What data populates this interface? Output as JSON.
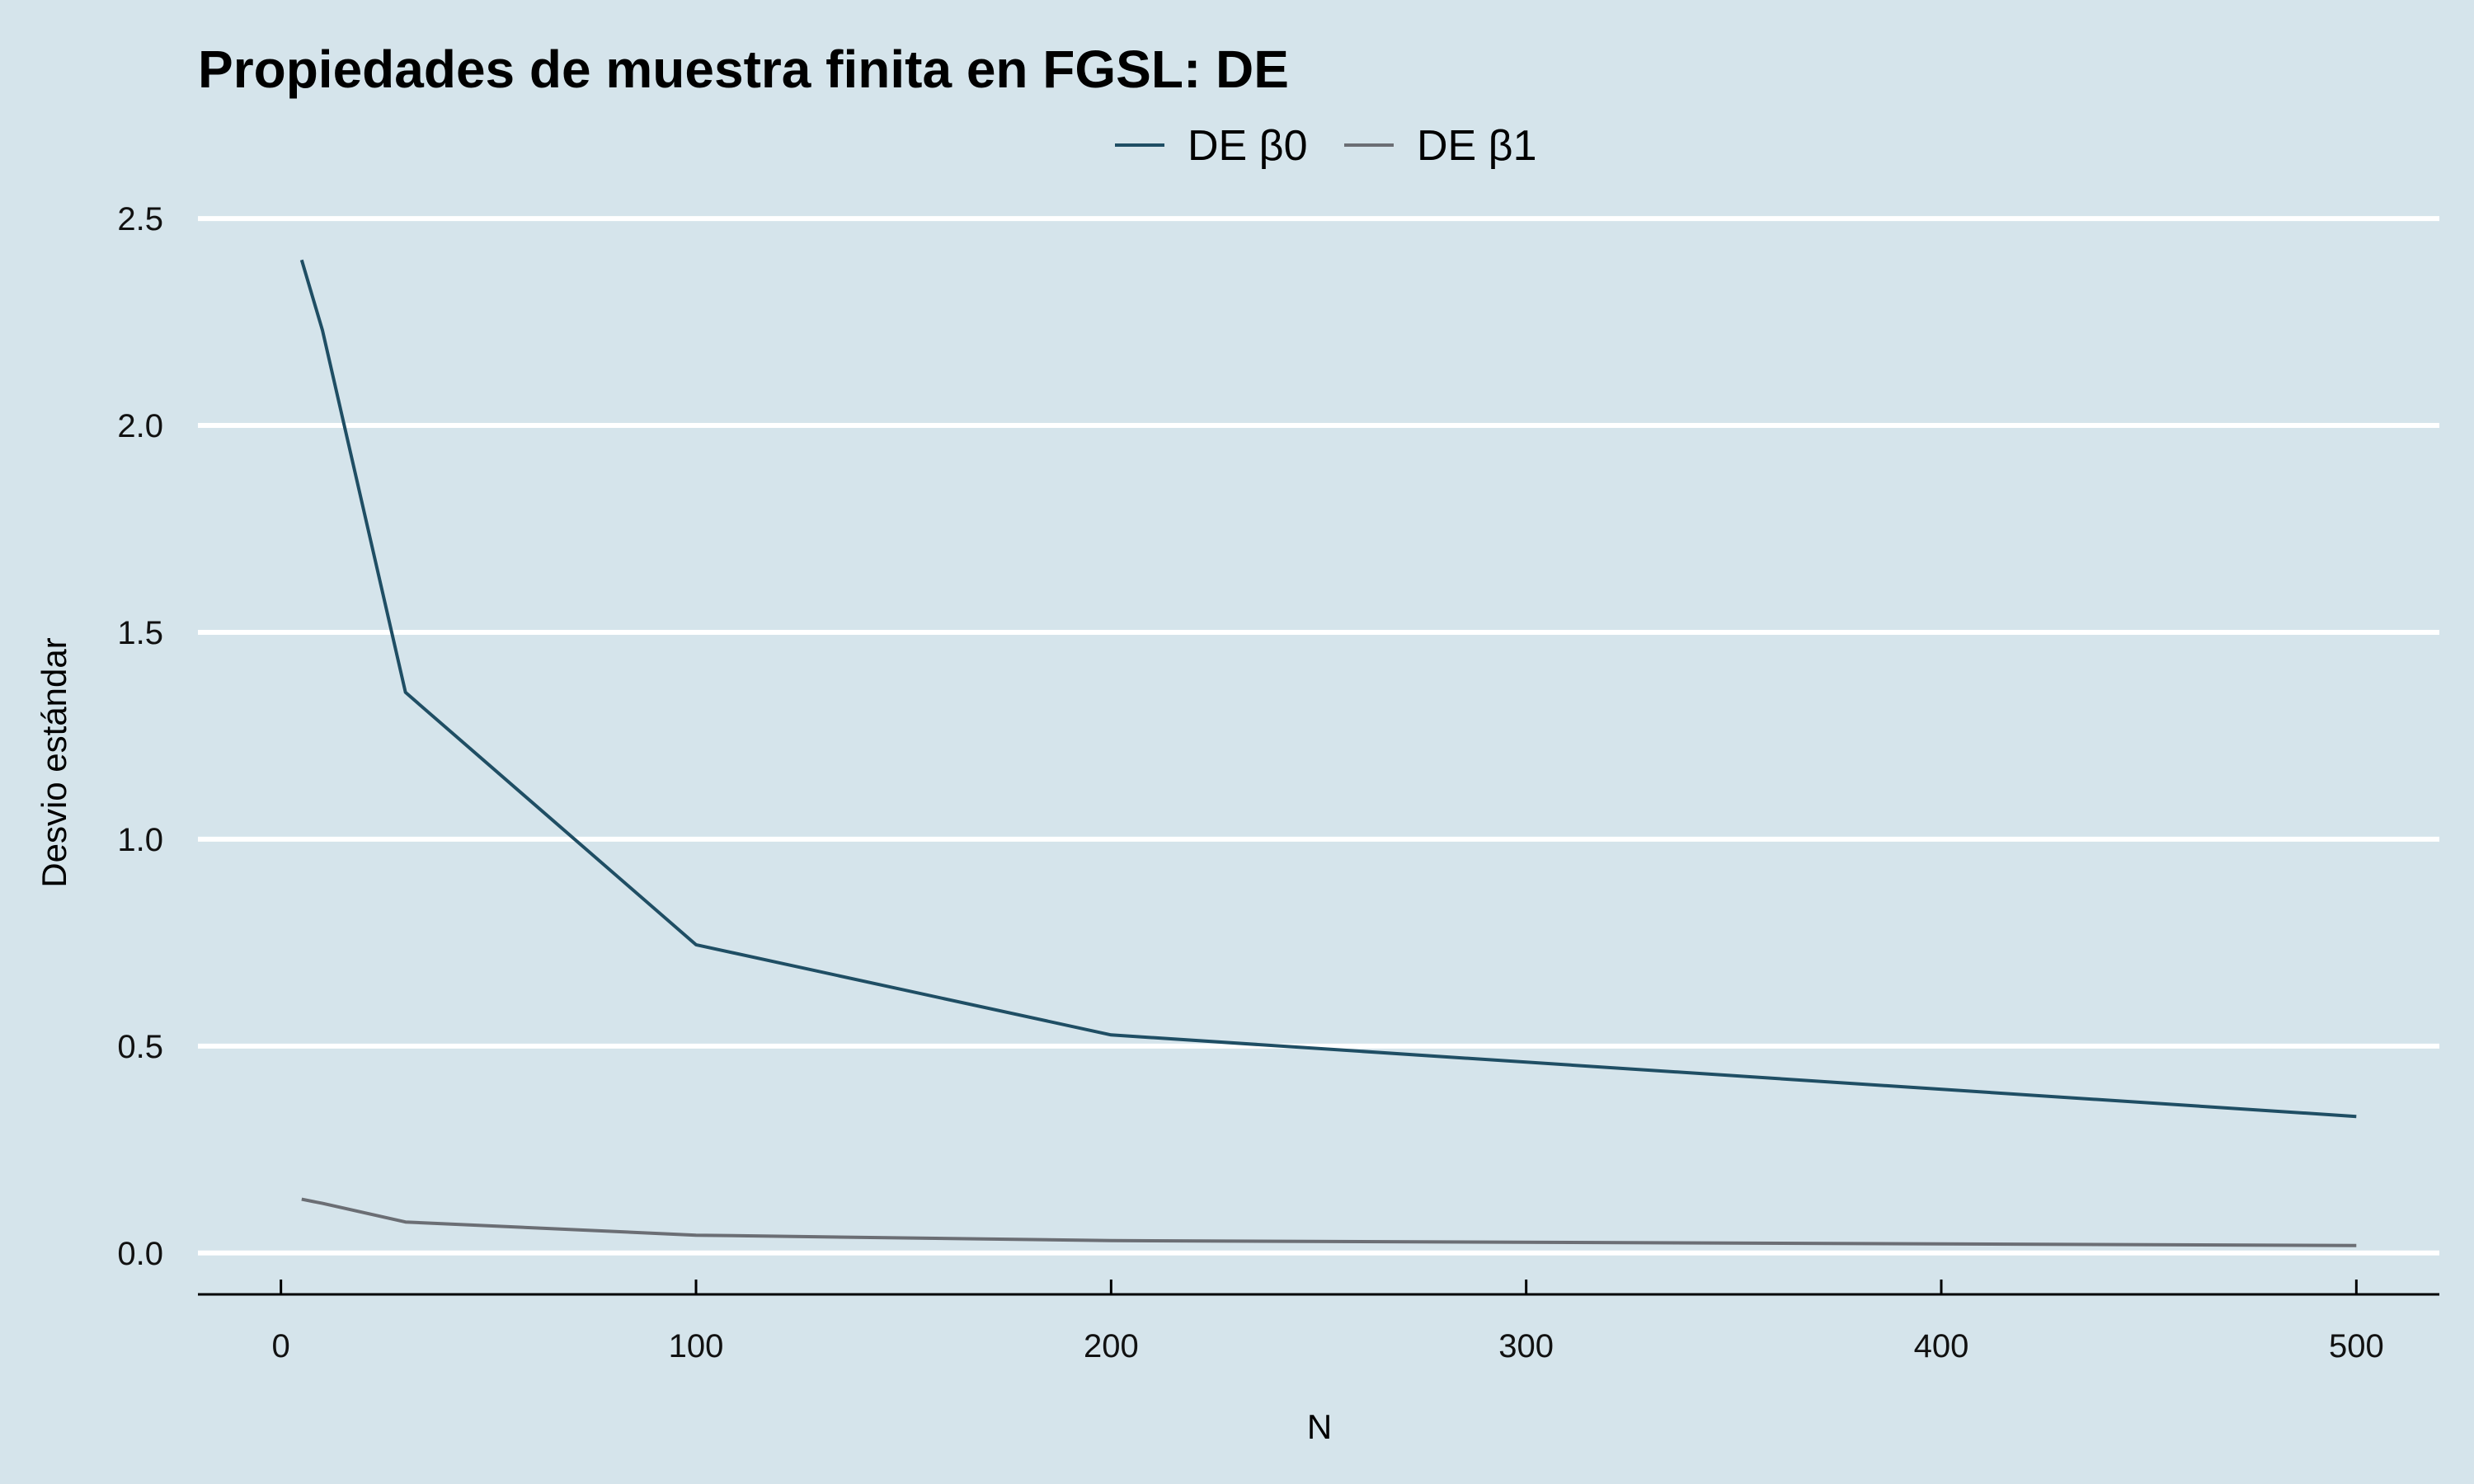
{
  "chart_data": {
    "type": "line",
    "title": "Propiedades de muestra finita en FGSL: DE",
    "xlabel": "N",
    "ylabel": "Desvio estándar",
    "xlim": [
      -20,
      520
    ],
    "ylim": [
      -0.1,
      2.55
    ],
    "x_ticks": [
      0,
      100,
      200,
      300,
      400,
      500
    ],
    "y_ticks": [
      0.0,
      0.5,
      1.0,
      1.5,
      2.0,
      2.5
    ],
    "x_tick_labels": [
      "0",
      "100",
      "200",
      "300",
      "400",
      "500"
    ],
    "y_tick_labels": [
      "0.0",
      "0.5",
      "1.0",
      "1.5",
      "2.0",
      "2.5"
    ],
    "grid": "horizontal",
    "legend_position": "top",
    "series": [
      {
        "name": "DE β0",
        "color": "#1f4e64",
        "x": [
          5,
          10,
          30,
          100,
          200,
          500
        ],
        "y": [
          2.4,
          2.23,
          1.355,
          0.745,
          0.527,
          0.33
        ]
      },
      {
        "name": "DE β1",
        "color": "#6b6e74",
        "x": [
          5,
          10,
          30,
          100,
          200,
          500
        ],
        "y": [
          0.13,
          0.12,
          0.075,
          0.043,
          0.03,
          0.018
        ]
      }
    ],
    "colors": {
      "background": "#d5e4eb",
      "grid": "#ffffff",
      "axis": "#000000"
    }
  }
}
